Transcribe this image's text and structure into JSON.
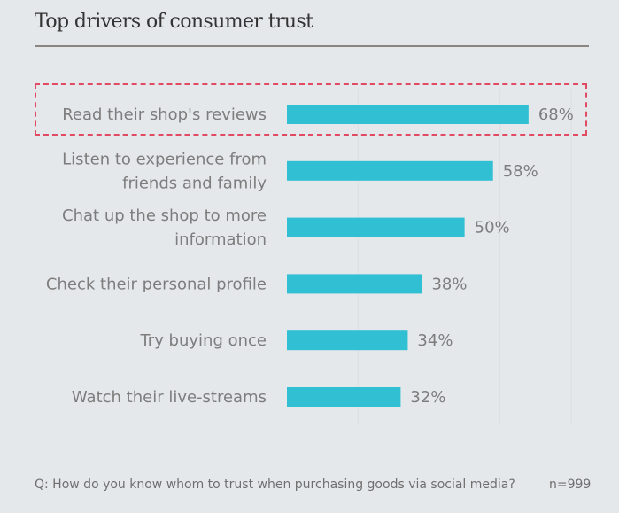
{
  "chart_data": {
    "type": "bar",
    "orientation": "horizontal",
    "title": "Top drivers of consumer trust",
    "categories": [
      [
        "Read their shop's reviews"
      ],
      [
        "Listen to experience from",
        "friends and family"
      ],
      [
        "Chat up the shop to more",
        "information"
      ],
      [
        "Check their personal profile"
      ],
      [
        "Try buying once"
      ],
      [
        "Watch their live-streams"
      ]
    ],
    "values": [
      68,
      58,
      50,
      38,
      34,
      32
    ],
    "value_labels": [
      "68%",
      "58%",
      "50%",
      "38%",
      "34%",
      "32%"
    ],
    "xlim": [
      0,
      80
    ],
    "grid": true,
    "highlighted_index": 0,
    "bar_color": "#31bfd3",
    "highlight_color": "#e04a63"
  },
  "footer": {
    "question": "Q: How do you know whom to trust when purchasing goods via social media?",
    "sample": "n=999"
  }
}
